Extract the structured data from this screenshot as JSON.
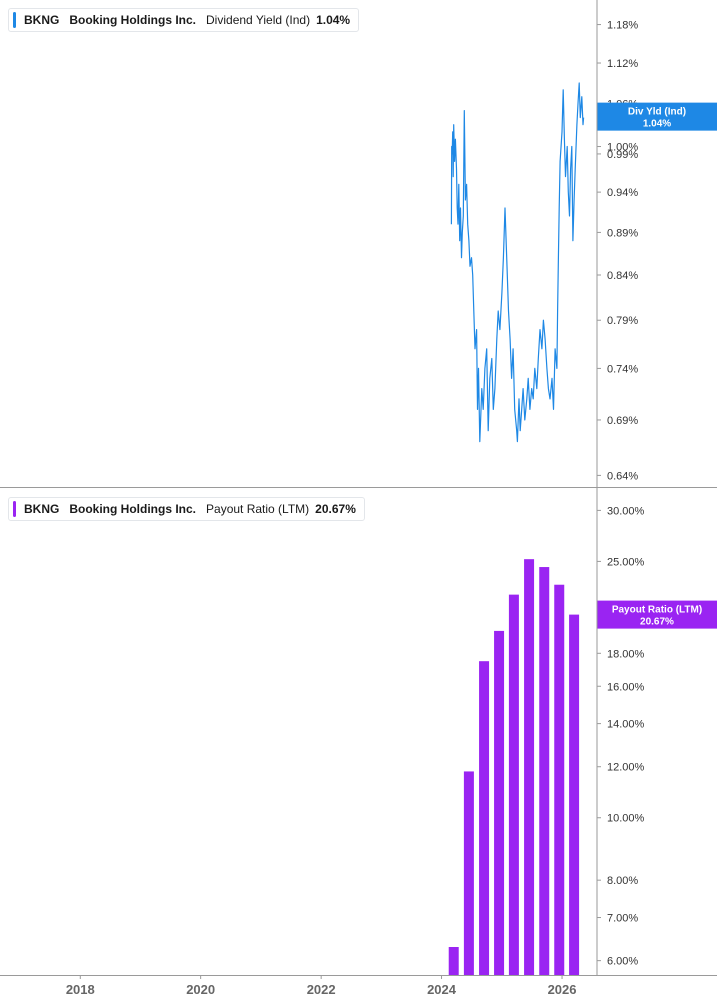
{
  "legends": [
    {
      "ticker": "BKNG",
      "company": "Booking Holdings Inc.",
      "metric": "Dividend Yield (Ind)",
      "value": "1.04%",
      "color": "#1e88e5"
    },
    {
      "ticker": "BKNG",
      "company": "Booking Holdings Inc.",
      "metric": "Payout Ratio (LTM)",
      "value": "20.67%",
      "color": "#9a24f2"
    }
  ],
  "chart_data": [
    {
      "type": "line",
      "title": "Dividend Yield (Ind)",
      "color": "#1e88e5",
      "y_scale": "log",
      "ylim": [
        0.63,
        1.22
      ],
      "xlim": [
        "2016-09-01",
        "2026-08-01"
      ],
      "y_ticks": [
        "1.18%",
        "1.12%",
        "1.06%",
        "1.00%",
        "0.99%",
        "0.94%",
        "0.89%",
        "0.84%",
        "0.79%",
        "0.74%",
        "0.69%",
        "0.64%"
      ],
      "y_tick_values": [
        1.18,
        1.12,
        1.06,
        1.0,
        0.99,
        0.94,
        0.89,
        0.84,
        0.79,
        0.74,
        0.69,
        0.64
      ],
      "last_value": {
        "label": "Div Yld (Ind)",
        "value": "1.04%",
        "y": 1.04
      },
      "series": [
        {
          "x": [
            "2024-03-01",
            "2024-03-03",
            "2024-03-06",
            "2024-03-09",
            "2024-03-12",
            "2024-03-15",
            "2024-03-20",
            "2024-03-25",
            "2024-04-01",
            "2024-04-05",
            "2024-04-10",
            "2024-04-15",
            "2024-04-20",
            "2024-04-25",
            "2024-05-01",
            "2024-05-06",
            "2024-05-12",
            "2024-05-18",
            "2024-05-25",
            "2024-06-01",
            "2024-06-08",
            "2024-06-15",
            "2024-06-22",
            "2024-07-01",
            "2024-07-08",
            "2024-07-15",
            "2024-07-22",
            "2024-08-01",
            "2024-08-06",
            "2024-08-12",
            "2024-08-20",
            "2024-09-01",
            "2024-09-10",
            "2024-09-20",
            "2024-10-01",
            "2024-10-10",
            "2024-10-20",
            "2024-11-01",
            "2024-11-10",
            "2024-11-20",
            "2024-12-01",
            "2024-12-10",
            "2024-12-20",
            "2025-01-01",
            "2025-01-10",
            "2025-01-20",
            "2025-02-01",
            "2025-02-10",
            "2025-02-20",
            "2025-03-01",
            "2025-03-10",
            "2025-03-20",
            "2025-04-01",
            "2025-04-05",
            "2025-04-10",
            "2025-04-15",
            "2025-04-22",
            "2025-05-01",
            "2025-05-10",
            "2025-05-20",
            "2025-06-01",
            "2025-06-10",
            "2025-06-20",
            "2025-07-01",
            "2025-07-10",
            "2025-07-20",
            "2025-08-01",
            "2025-08-10",
            "2025-08-20",
            "2025-09-01",
            "2025-09-10",
            "2025-09-20",
            "2025-10-01",
            "2025-10-10",
            "2025-10-20",
            "2025-11-01",
            "2025-11-10",
            "2025-11-20",
            "2025-12-01",
            "2025-12-05",
            "2025-12-10",
            "2025-12-15",
            "2025-12-20",
            "2026-01-01",
            "2026-01-08",
            "2026-01-15",
            "2026-01-22",
            "2026-02-01",
            "2026-02-08",
            "2026-02-15",
            "2026-02-22",
            "2026-03-01",
            "2026-03-08",
            "2026-03-15",
            "2026-03-22",
            "2026-04-01",
            "2026-04-08",
            "2026-04-15",
            "2026-04-22",
            "2026-05-01",
            "2026-05-08",
            "2026-05-12"
          ],
          "y": [
            0.9,
            1.0,
            0.99,
            1.02,
            0.96,
            1.03,
            0.98,
            1.01,
            0.97,
            0.92,
            0.9,
            0.95,
            0.88,
            0.92,
            0.86,
            0.89,
            0.91,
            1.05,
            0.93,
            0.95,
            0.9,
            0.88,
            0.85,
            0.86,
            0.84,
            0.8,
            0.76,
            0.78,
            0.7,
            0.74,
            0.67,
            0.72,
            0.7,
            0.74,
            0.76,
            0.68,
            0.73,
            0.75,
            0.7,
            0.72,
            0.77,
            0.8,
            0.78,
            0.82,
            0.86,
            0.92,
            0.85,
            0.8,
            0.77,
            0.73,
            0.76,
            0.7,
            0.68,
            0.67,
            0.69,
            0.71,
            0.68,
            0.7,
            0.72,
            0.69,
            0.71,
            0.73,
            0.7,
            0.72,
            0.71,
            0.74,
            0.72,
            0.75,
            0.78,
            0.76,
            0.79,
            0.77,
            0.74,
            0.72,
            0.71,
            0.73,
            0.7,
            0.76,
            0.74,
            0.8,
            0.86,
            0.92,
            0.98,
            1.02,
            1.08,
            1.01,
            0.96,
            1.0,
            0.94,
            0.91,
            0.97,
            1.0,
            0.88,
            0.93,
            0.97,
            1.03,
            1.06,
            1.09,
            1.04,
            1.07,
            1.03,
            1.04
          ]
        }
      ]
    },
    {
      "type": "bar",
      "title": "Payout Ratio (LTM)",
      "color": "#9a24f2",
      "y_scale": "log",
      "ylim": [
        5.7,
        32.5
      ],
      "xlim": [
        "2016-09-01",
        "2026-08-01"
      ],
      "y_ticks": [
        "30.00%",
        "25.00%",
        "18.00%",
        "16.00%",
        "14.00%",
        "12.00%",
        "10.00%",
        "8.00%",
        "7.00%",
        "6.00%"
      ],
      "y_tick_values": [
        30,
        25,
        18,
        16,
        14,
        12,
        10,
        8,
        7,
        6
      ],
      "last_value": {
        "label": "Payout Ratio (LTM)",
        "value": "20.67%",
        "y": 20.67
      },
      "categories": [
        "2024-03-15",
        "2024-06-15",
        "2024-09-15",
        "2024-12-15",
        "2025-03-15",
        "2025-06-15",
        "2025-09-15",
        "2025-12-15",
        "2026-03-15"
      ],
      "values": [
        6.3,
        11.8,
        17.5,
        19.5,
        22.2,
        25.2,
        24.5,
        23.0,
        20.67
      ]
    }
  ],
  "x_axis": {
    "labels": [
      "2018",
      "2020",
      "2022",
      "2024",
      "2026"
    ],
    "dates": [
      "2018-01-01",
      "2020-01-01",
      "2022-01-01",
      "2024-01-01",
      "2026-01-01"
    ]
  }
}
